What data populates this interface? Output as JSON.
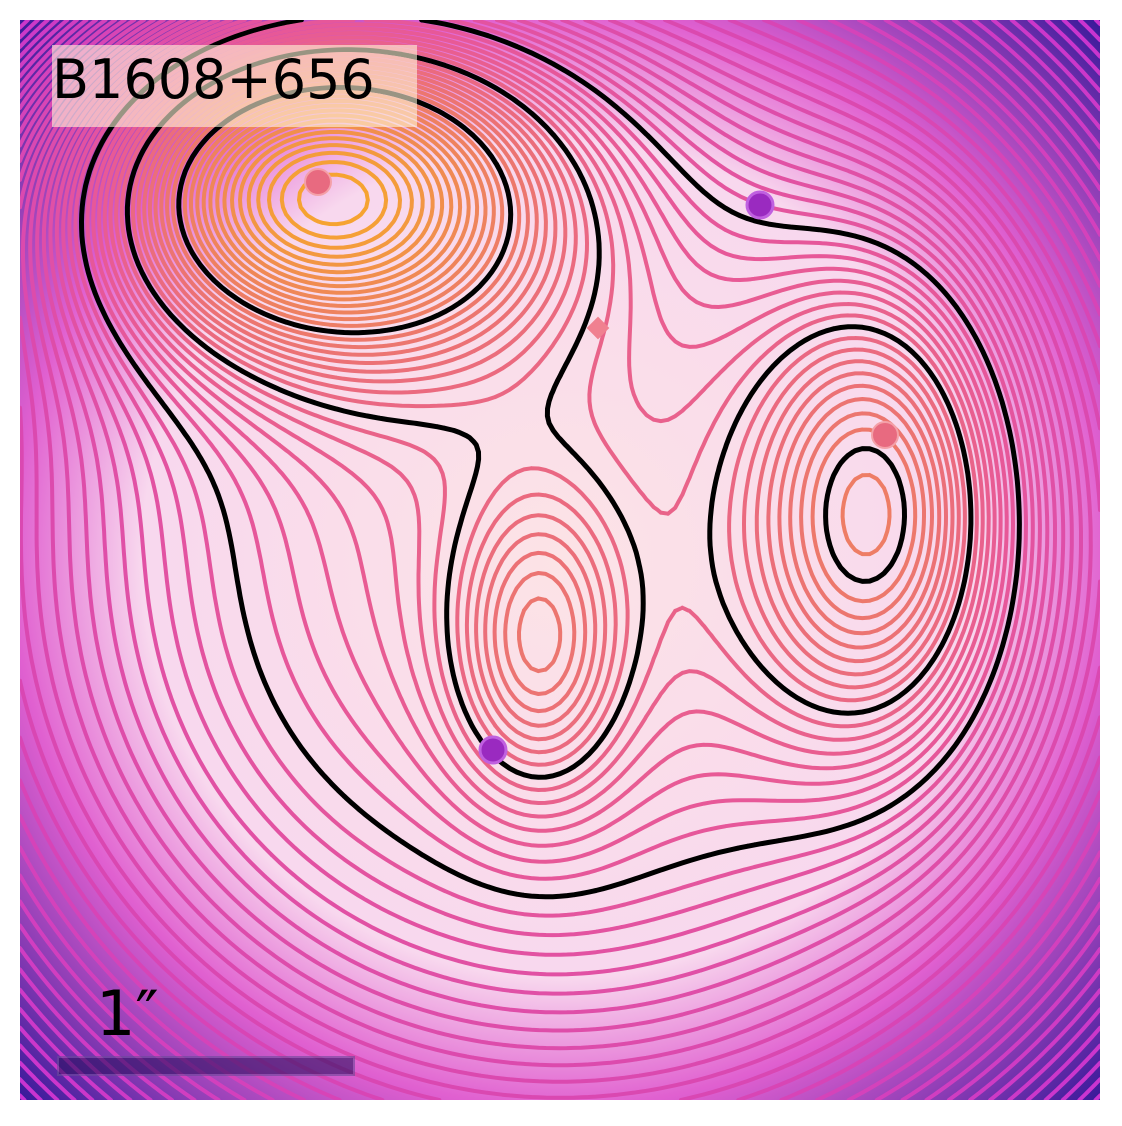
{
  "title": "B1608+656",
  "scale_bar": {
    "label": "1″"
  }
}
